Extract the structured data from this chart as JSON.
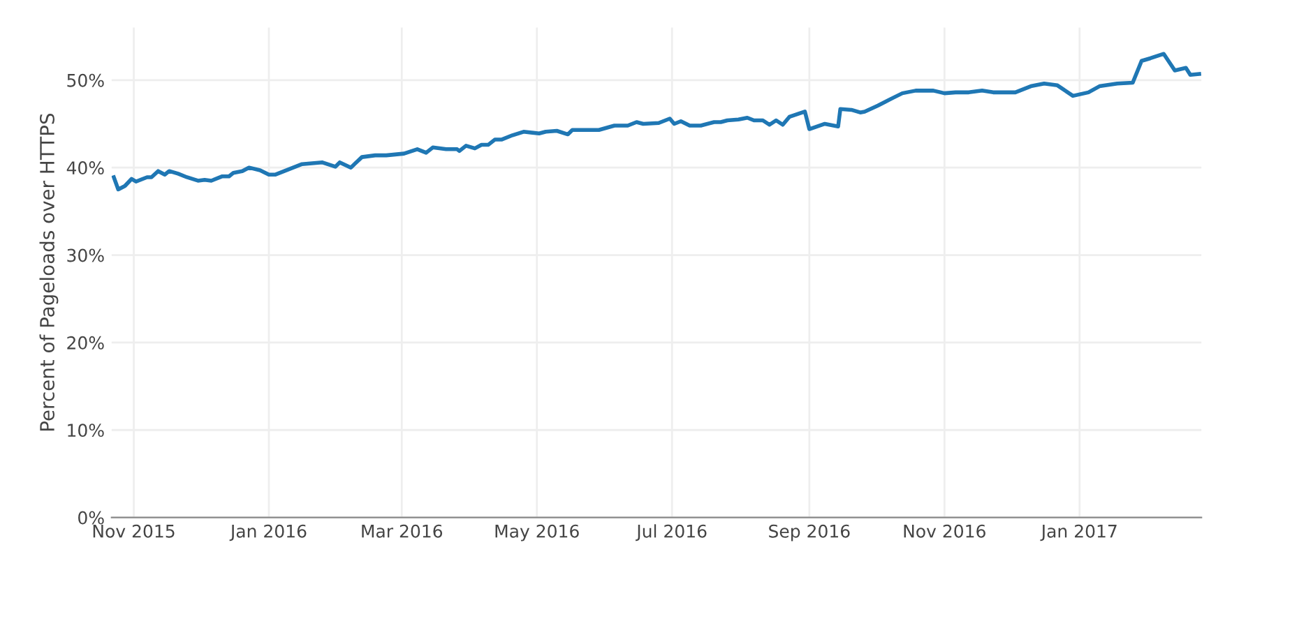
{
  "chart_data": {
    "type": "line",
    "ylabel": "Percent of Pageloads over HTTPS",
    "x": [
      "2015-10-23",
      "2015-10-25",
      "2015-10-28",
      "2015-10-31",
      "2015-11-02",
      "2015-11-07",
      "2015-11-09",
      "2015-11-12",
      "2015-11-15",
      "2015-11-17",
      "2015-11-21",
      "2015-11-25",
      "2015-11-30",
      "2015-12-03",
      "2015-12-06",
      "2015-12-11",
      "2015-12-14",
      "2015-12-16",
      "2015-12-20",
      "2015-12-23",
      "2015-12-28",
      "2016-01-01",
      "2016-01-04",
      "2016-01-09",
      "2016-01-16",
      "2016-01-25",
      "2016-01-31",
      "2016-02-02",
      "2016-02-07",
      "2016-02-12",
      "2016-02-18",
      "2016-02-23",
      "2016-03-02",
      "2016-03-08",
      "2016-03-12",
      "2016-03-15",
      "2016-03-21",
      "2016-03-26",
      "2016-03-27",
      "2016-03-30",
      "2016-04-03",
      "2016-04-06",
      "2016-04-09",
      "2016-04-12",
      "2016-04-15",
      "2016-04-20",
      "2016-04-25",
      "2016-05-02",
      "2016-05-05",
      "2016-05-10",
      "2016-05-15",
      "2016-05-17",
      "2016-05-29",
      "2016-06-05",
      "2016-06-11",
      "2016-06-15",
      "2016-06-18",
      "2016-06-25",
      "2016-06-30",
      "2016-07-02",
      "2016-07-05",
      "2016-07-09",
      "2016-07-14",
      "2016-07-20",
      "2016-07-23",
      "2016-07-26",
      "2016-07-31",
      "2016-08-04",
      "2016-08-07",
      "2016-08-11",
      "2016-08-14",
      "2016-08-17",
      "2016-08-20",
      "2016-08-23",
      "2016-08-30",
      "2016-09-01",
      "2016-09-08",
      "2016-09-14",
      "2016-09-15",
      "2016-09-20",
      "2016-09-24",
      "2016-09-26",
      "2016-10-02",
      "2016-10-09",
      "2016-10-13",
      "2016-10-19",
      "2016-10-27",
      "2016-11-01",
      "2016-11-06",
      "2016-11-12",
      "2016-11-18",
      "2016-11-23",
      "2016-12-03",
      "2016-12-10",
      "2016-12-16",
      "2016-12-22",
      "2016-12-29",
      "2017-01-05",
      "2017-01-10",
      "2017-01-18",
      "2017-01-25",
      "2017-01-29",
      "2017-02-02",
      "2017-02-08",
      "2017-02-13",
      "2017-02-18",
      "2017-02-20",
      "2017-02-24"
    ],
    "series": [
      {
        "color": "#1f77b4",
        "values": [
          38.9,
          37.5,
          37.9,
          38.7,
          38.4,
          38.9,
          38.9,
          39.6,
          39.2,
          39.6,
          39.3,
          38.9,
          38.5,
          38.6,
          38.5,
          39.0,
          39.0,
          39.4,
          39.6,
          40.0,
          39.7,
          39.2,
          39.2,
          39.7,
          40.4,
          40.6,
          40.1,
          40.6,
          40.0,
          41.2,
          41.4,
          41.4,
          41.6,
          42.1,
          41.7,
          42.3,
          42.1,
          42.1,
          41.9,
          42.5,
          42.2,
          42.6,
          42.6,
          43.2,
          43.2,
          43.7,
          44.1,
          43.9,
          44.1,
          44.2,
          43.8,
          44.3,
          44.3,
          44.8,
          44.8,
          45.2,
          45.0,
          45.1,
          45.6,
          45.0,
          45.3,
          44.8,
          44.8,
          45.2,
          45.2,
          45.4,
          45.5,
          45.7,
          45.4,
          45.4,
          44.9,
          45.4,
          44.9,
          45.8,
          46.4,
          44.4,
          45.0,
          44.7,
          46.7,
          46.6,
          46.3,
          46.4,
          47.1,
          48.0,
          48.5,
          48.8,
          48.8,
          48.5,
          48.6,
          48.6,
          48.8,
          48.6,
          48.6,
          49.3,
          49.6,
          49.4,
          48.2,
          48.6,
          49.3,
          49.6,
          49.7,
          52.2,
          52.5,
          53.0,
          51.1,
          51.4,
          50.6,
          50.7
        ]
      }
    ],
    "xlim": [
      "2015-10-22",
      "2017-02-25"
    ],
    "xticks": [
      {
        "value": "2015-11-01",
        "label": "Nov 2015"
      },
      {
        "value": "2016-01-01",
        "label": "Jan 2016"
      },
      {
        "value": "2016-03-01",
        "label": "Mar 2016"
      },
      {
        "value": "2016-05-01",
        "label": "May 2016"
      },
      {
        "value": "2016-07-01",
        "label": "Jul 2016"
      },
      {
        "value": "2016-09-01",
        "label": "Sep 2016"
      },
      {
        "value": "2016-11-01",
        "label": "Nov 2016"
      },
      {
        "value": "2017-01-01",
        "label": "Jan 2017"
      }
    ],
    "ylim": [
      0,
      56
    ],
    "yticks": [
      {
        "value": 0,
        "label": "0%"
      },
      {
        "value": 10,
        "label": "10%"
      },
      {
        "value": 20,
        "label": "20%"
      },
      {
        "value": 30,
        "label": "30%"
      },
      {
        "value": 40,
        "label": "40%"
      },
      {
        "value": 50,
        "label": "50%"
      }
    ],
    "grid": true,
    "legend": false,
    "marker": "none",
    "line_style": "solid"
  }
}
